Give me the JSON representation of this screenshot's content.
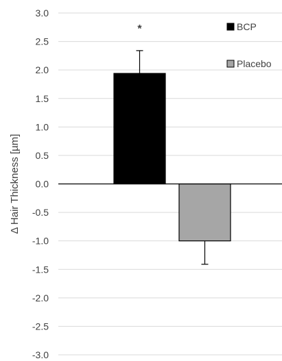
{
  "chart_data": {
    "type": "bar",
    "title": "",
    "xlabel": "",
    "ylabel": "Δ Hair Thickness [µm]",
    "ylim": [
      -3.0,
      3.0
    ],
    "yticks": [
      3.0,
      2.5,
      2.0,
      1.5,
      1.0,
      0.5,
      0.0,
      -0.5,
      -1.0,
      -1.5,
      -2.0,
      -2.5,
      -3.0
    ],
    "ytick_labels": [
      "3.0",
      "2.5",
      "2.0",
      "1.5",
      "1.0",
      "0.5",
      "0.0",
      "-0.5",
      "-1.0",
      "-1.5",
      "-2.0",
      "-2.5",
      "-3.0"
    ],
    "grid": true,
    "legend_position": "top-right",
    "series": [
      {
        "name": "BCP",
        "value": 1.94,
        "error": 0.4,
        "color": "#000000",
        "edge_color": "#000000",
        "annotation": "*"
      },
      {
        "name": "Placebo",
        "value": -1.0,
        "error": 0.41,
        "color": "#a6a6a6",
        "edge_color": "#000000",
        "annotation": ""
      }
    ]
  }
}
